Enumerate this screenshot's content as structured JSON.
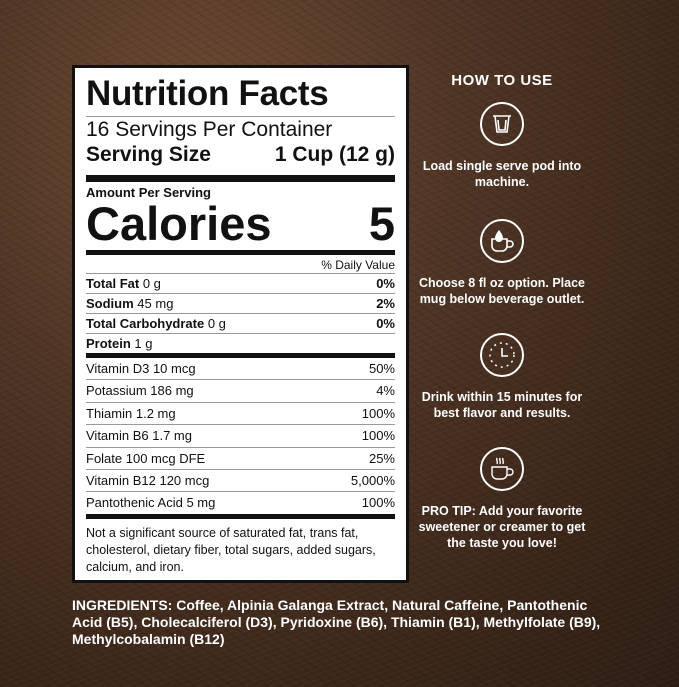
{
  "label": {
    "title": "Nutrition Facts",
    "servings": "16 Servings Per Container",
    "serving_size_label": "Serving Size",
    "serving_size_value": "1 Cup (12 g)",
    "amount_per_serving": "Amount Per Serving",
    "calories_label": "Calories",
    "calories_value": "5",
    "daily_value_header": "% Daily Value",
    "nutrients": [
      {
        "name": "Total Fat",
        "amount": "0 g",
        "dv": "0%"
      },
      {
        "name": "Sodium",
        "amount": "45 mg",
        "dv": "2%"
      },
      {
        "name": "Total Carbohydrate",
        "amount": "0 g",
        "dv": "0%"
      },
      {
        "name": "Protein",
        "amount": "1 g",
        "dv": ""
      }
    ],
    "vitamins": [
      {
        "name": "Vitamin D3 10 mcg",
        "dv": "50%"
      },
      {
        "name": "Potassium 186 mg",
        "dv": "4%"
      },
      {
        "name": "Thiamin 1.2 mg",
        "dv": "100%"
      },
      {
        "name": "Vitamin B6 1.7 mg",
        "dv": "100%"
      },
      {
        "name": "Folate 100 mcg DFE",
        "dv": "25%"
      },
      {
        "name": "Vitamin B12 120 mcg",
        "dv": "5,000%"
      },
      {
        "name": "Pantothenic Acid 5 mg",
        "dv": "100%"
      }
    ],
    "footnote": "Not a significant source of saturated fat, trans fat, cholesterol, dietary fiber, total sugars, added sugars, calcium, and iron."
  },
  "how_to_use": {
    "title": "HOW TO USE",
    "steps": [
      {
        "icon": "pod-icon",
        "text": "Load single serve pod into machine."
      },
      {
        "icon": "mug-drop-icon",
        "text": "Choose 8 fl oz option. Place mug below beverage outlet."
      },
      {
        "icon": "clock-icon",
        "text": "Drink within 15 minutes for best flavor and results."
      },
      {
        "icon": "steaming-cup-icon",
        "text": "PRO TIP: Add your favorite sweetener or creamer to get the taste you love!"
      }
    ]
  },
  "ingredients": "INGREDIENTS: Coffee, Alpinia Galanga Extract, Natural Caffeine, Pantothenic Acid (B5), Cholecalciferol (D3), Pyridoxine (B6), Thiamin (B1), Methylfolate (B9), Methylcobalamin (B12)"
}
